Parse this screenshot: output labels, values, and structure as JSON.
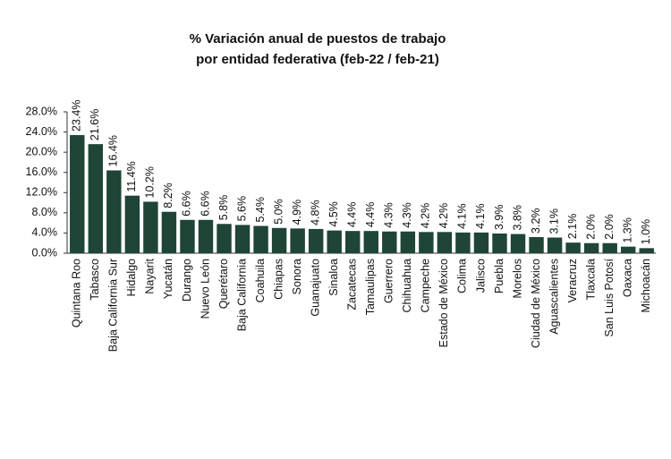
{
  "chart_data": {
    "type": "bar",
    "title": [
      "% Variación anual de puestos de trabajo",
      "por entidad federativa (feb-22 / feb-21)"
    ],
    "categories": [
      "Quintana Roo",
      "Tabasco",
      "Baja California Sur",
      "Hidalgo",
      "Nayarit",
      "Yucatán",
      "Durango",
      "Nuevo León",
      "Querétaro",
      "Baja California",
      "Coahuila",
      "Chiapas",
      "Sonora",
      "Guanajuato",
      "Sinaloa",
      "Zacatecas",
      "Tamaulipas",
      "Guerrero",
      "Chihuahua",
      "Campeche",
      "Estado de México",
      "Colima",
      "Jalisco",
      "Puebla",
      "Morelos",
      "Ciudad de México",
      "Aguascalientes",
      "Veracruz",
      "Tlaxcala",
      "San Luis Potosí",
      "Oaxaca",
      "Michoacán"
    ],
    "values": [
      23.4,
      21.6,
      16.4,
      11.4,
      10.2,
      8.2,
      6.6,
      6.6,
      5.8,
      5.6,
      5.4,
      5.0,
      4.9,
      4.8,
      4.5,
      4.4,
      4.4,
      4.3,
      4.3,
      4.2,
      4.2,
      4.1,
      4.1,
      3.9,
      3.8,
      3.2,
      3.1,
      2.1,
      2.0,
      2.0,
      1.3,
      1.0
    ],
    "value_labels": [
      "23.4%",
      "21.6%",
      "16.4%",
      "11.4%",
      "10.2%",
      "8.2%",
      "6.6%",
      "6.6%",
      "5.8%",
      "5.6%",
      "5.4%",
      "5.0%",
      "4.9%",
      "4.8%",
      "4.5%",
      "4.4%",
      "4.4%",
      "4.3%",
      "4.3%",
      "4.2%",
      "4.2%",
      "4.1%",
      "4.1%",
      "3.9%",
      "3.8%",
      "3.2%",
      "3.1%",
      "2.1%",
      "2.0%",
      "2.0%",
      "1.3%",
      "1.0%"
    ],
    "color": "#1e4536",
    "ylim": [
      0,
      28
    ],
    "yticks": [
      {
        "value": 0,
        "label": "0.0%"
      },
      {
        "value": 4,
        "label": "4.0%"
      },
      {
        "value": 8,
        "label": "8.0%"
      },
      {
        "value": 12,
        "label": "12.0%"
      },
      {
        "value": 16,
        "label": "16.0%"
      },
      {
        "value": 20,
        "label": "20.0%"
      },
      {
        "value": 24,
        "label": "24.0%"
      },
      {
        "value": 28,
        "label": "28.0%"
      }
    ]
  }
}
